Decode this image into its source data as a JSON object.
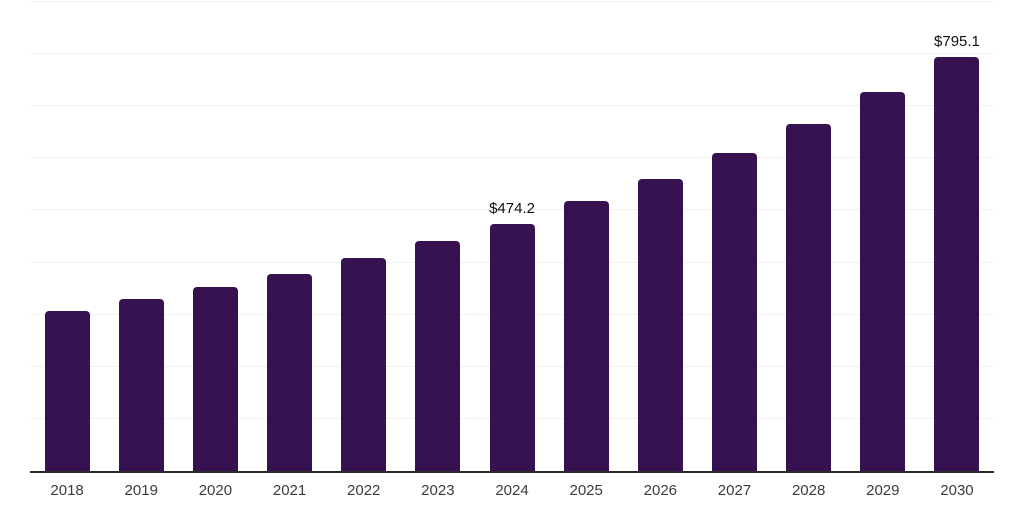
{
  "chart_data": {
    "type": "bar",
    "title": "",
    "xlabel": "",
    "ylabel": "",
    "categories": [
      "2018",
      "2019",
      "2020",
      "2021",
      "2022",
      "2023",
      "2024",
      "2025",
      "2026",
      "2027",
      "2028",
      "2029",
      "2030"
    ],
    "values": [
      308,
      331,
      354,
      378,
      408,
      442,
      474.2,
      519,
      560,
      610,
      666,
      727,
      795.1
    ],
    "data_labels": {
      "2024": "$474.2",
      "2030": "$795.1"
    },
    "ylim": [
      0,
      900
    ],
    "gridline_interval": 100,
    "y_axis_labels_visible": false,
    "grid": "horizontal",
    "legend_position": "none"
  },
  "colors": {
    "bar": "#371250",
    "gridline": "#f0f0f0",
    "axis": "#2b2b2b",
    "tick_label": "#3c3c3c",
    "data_label": "#111111",
    "background": "#ffffff"
  }
}
